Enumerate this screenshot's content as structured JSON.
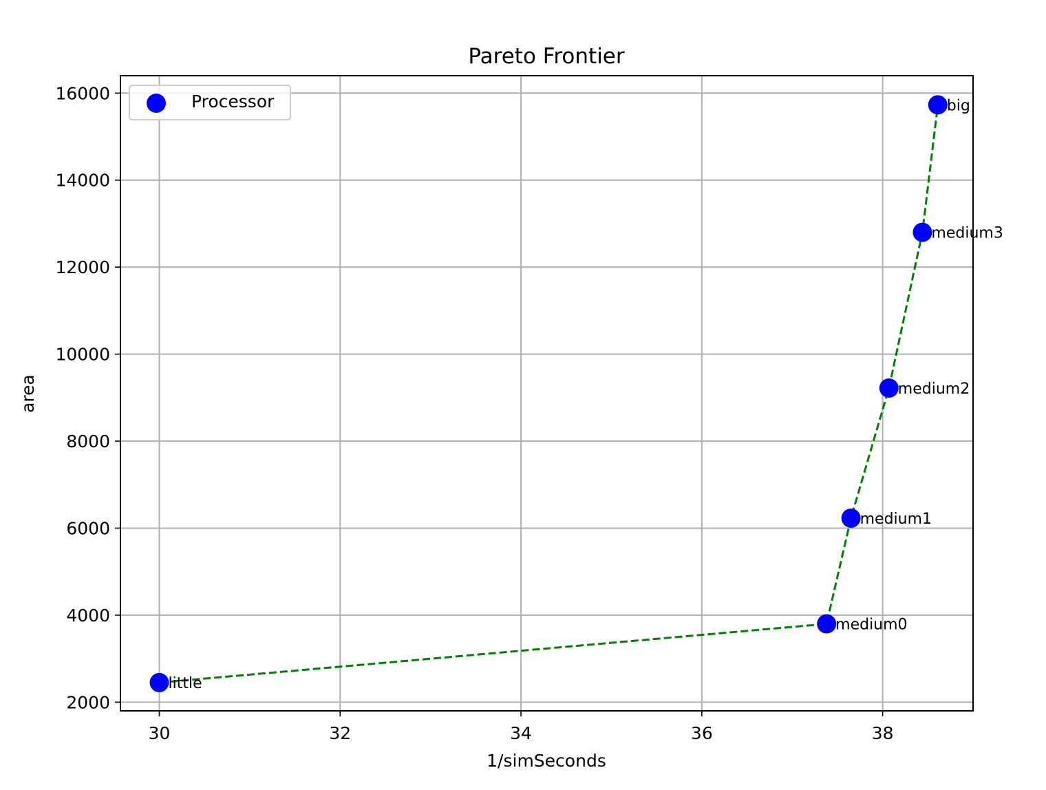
{
  "chart_data": {
    "type": "scatter",
    "title": "Pareto Frontier",
    "xlabel": "1/simSeconds",
    "ylabel": "area",
    "xlim": [
      29.57,
      39.0
    ],
    "ylim": [
      1800,
      16400
    ],
    "xticks": [
      30,
      32,
      34,
      36,
      38
    ],
    "yticks": [
      2000,
      4000,
      6000,
      8000,
      10000,
      12000,
      14000,
      16000
    ],
    "grid": true,
    "legend_position": "upper-left",
    "marker_color": "#0000ff",
    "line_color": "#008000",
    "line_style": "dashed",
    "series": [
      {
        "name": "Processor",
        "points": [
          {
            "label": "little",
            "x": 30.0,
            "y": 2450
          },
          {
            "label": "medium0",
            "x": 37.38,
            "y": 3800
          },
          {
            "label": "medium1",
            "x": 37.65,
            "y": 6230
          },
          {
            "label": "medium2",
            "x": 38.07,
            "y": 9220
          },
          {
            "label": "medium3",
            "x": 38.44,
            "y": 12800
          },
          {
            "label": "big",
            "x": 38.61,
            "y": 15730
          }
        ]
      }
    ],
    "frontier_order": [
      "little",
      "medium0",
      "medium1",
      "medium2",
      "medium3",
      "big"
    ]
  }
}
